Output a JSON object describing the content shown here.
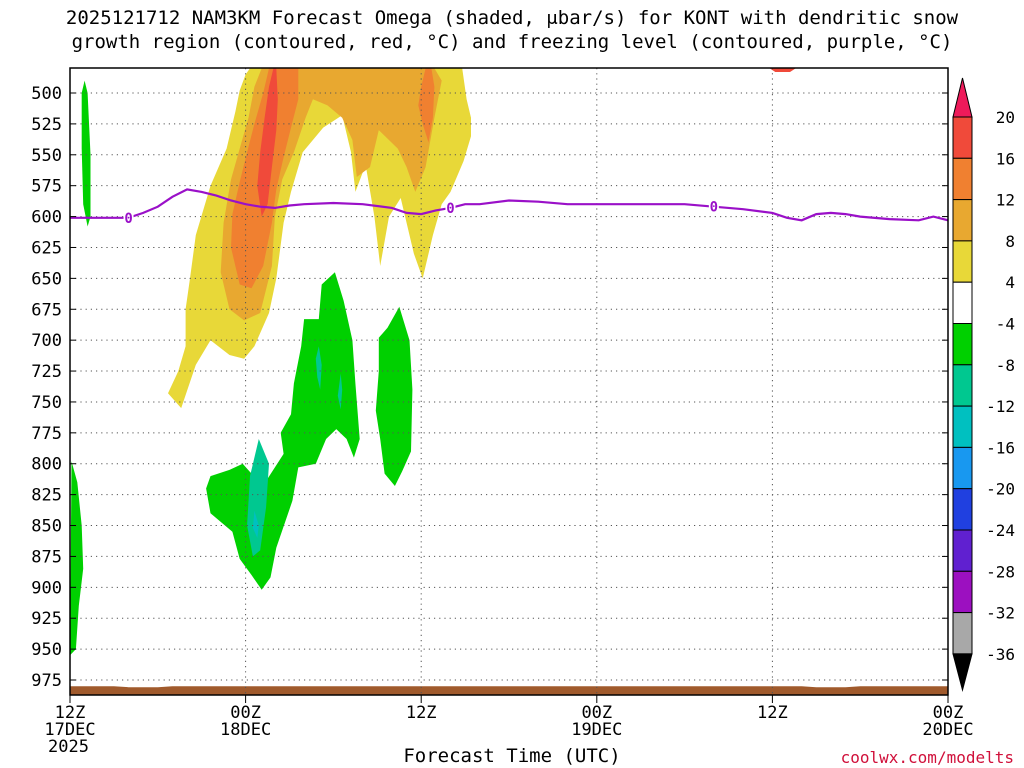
{
  "chart_data": {
    "type": "time-height",
    "title_line1": "2025121712 NAM3KM Forecast Omega (shaded, μbar/s) for KONT with dendritic snow",
    "title_line2": "growth region (contoured, red, °C) and freezing level (contoured, purple, °C)",
    "xlabel": "Forecast Time (UTC)",
    "credit": "coolwx.com/modelts",
    "x_range_hours": [
      0,
      60
    ],
    "y_range_hPa": [
      480,
      985
    ],
    "y_ticks": [
      500,
      525,
      550,
      575,
      600,
      625,
      650,
      675,
      700,
      725,
      750,
      775,
      800,
      825,
      850,
      875,
      900,
      925,
      950,
      975
    ],
    "x_ticks": [
      {
        "hour": 0,
        "lines": [
          "12Z",
          "17DEC",
          "2025"
        ]
      },
      {
        "hour": 12,
        "lines": [
          "00Z",
          "18DEC"
        ]
      },
      {
        "hour": 24,
        "lines": [
          "12Z"
        ]
      },
      {
        "hour": 36,
        "lines": [
          "00Z",
          "19DEC"
        ]
      },
      {
        "hour": 48,
        "lines": [
          "12Z"
        ]
      },
      {
        "hour": 60,
        "lines": [
          "00Z",
          "20DEC"
        ]
      }
    ],
    "colorbar": {
      "labels": [
        "20",
        "16",
        "12",
        "8",
        "4",
        "-4",
        "-8",
        "-12",
        "-16",
        "-20",
        "-24",
        "-28",
        "-32",
        "-36"
      ],
      "colors": [
        "#ee1a5a",
        "#f04a3a",
        "#f08030",
        "#e8a830",
        "#e8d838",
        "#ffffff",
        "#00d000",
        "#00c890",
        "#00c0c0",
        "#1898f0",
        "#2040e0",
        "#6020d0",
        "#9c10c0",
        "#a8a8a8",
        "#000000"
      ]
    },
    "freezing_level": {
      "label": "0",
      "color": "#9a10c8",
      "hours": [
        0,
        2,
        4,
        5,
        6,
        7,
        8,
        9,
        10,
        11,
        12,
        13,
        14,
        15,
        16,
        18,
        20,
        22,
        23,
        24,
        25,
        26,
        27,
        28,
        30,
        32,
        34,
        36,
        38,
        40,
        42,
        44,
        46,
        48,
        49,
        50,
        51,
        52,
        53,
        54,
        56,
        58,
        59,
        60
      ],
      "hPa": [
        601,
        601,
        601,
        597,
        592,
        584,
        578,
        580,
        583,
        587,
        590,
        592,
        593,
        591,
        590,
        589,
        590,
        593,
        597,
        598,
        595,
        593,
        590,
        590,
        587,
        588,
        590,
        590,
        590,
        590,
        590,
        592,
        594,
        597,
        601,
        603,
        598,
        597,
        598,
        600,
        602,
        603,
        600,
        603
      ]
    },
    "omega_regions": [
      {
        "level": "4",
        "color": "#e8d838",
        "points": [
          [
            12.3,
            480
          ],
          [
            12,
            485
          ],
          [
            11.6,
            498
          ],
          [
            11.3,
            515
          ],
          [
            10.7,
            545
          ],
          [
            9.6,
            575
          ],
          [
            8.6,
            615
          ],
          [
            8.2,
            650
          ],
          [
            7.9,
            675
          ],
          [
            7.9,
            705
          ],
          [
            7.4,
            725
          ],
          [
            6.7,
            743
          ],
          [
            7.6,
            755
          ],
          [
            8.6,
            720
          ],
          [
            9.6,
            700
          ],
          [
            10.9,
            712
          ],
          [
            11.9,
            715
          ],
          [
            12.6,
            705
          ],
          [
            13.6,
            678
          ],
          [
            14.1,
            650
          ],
          [
            14.6,
            605
          ],
          [
            15.1,
            580
          ],
          [
            15.9,
            548
          ],
          [
            17.3,
            528
          ],
          [
            18.6,
            518
          ],
          [
            19.2,
            548
          ],
          [
            19.5,
            580
          ],
          [
            20.2,
            558
          ],
          [
            20.8,
            600
          ],
          [
            21.2,
            640
          ],
          [
            21.8,
            600
          ],
          [
            22.6,
            585
          ],
          [
            23.5,
            630
          ],
          [
            24.1,
            650
          ],
          [
            24.8,
            615
          ],
          [
            25.4,
            590
          ],
          [
            26.0,
            580
          ],
          [
            26.9,
            555
          ],
          [
            27.4,
            535
          ],
          [
            27.4,
            520
          ],
          [
            27.1,
            505
          ],
          [
            26.8,
            480
          ]
        ]
      },
      {
        "level": "8",
        "color": "#e8a830",
        "points": [
          [
            13.1,
            480
          ],
          [
            12.6,
            495
          ],
          [
            12.2,
            520
          ],
          [
            11.6,
            545
          ],
          [
            11.0,
            570
          ],
          [
            10.5,
            605
          ],
          [
            10.3,
            645
          ],
          [
            10.9,
            675
          ],
          [
            11.9,
            684
          ],
          [
            13.0,
            678
          ],
          [
            13.8,
            640
          ],
          [
            14.0,
            600
          ],
          [
            14.5,
            570
          ],
          [
            15.3,
            548
          ],
          [
            16.1,
            520
          ],
          [
            16.6,
            505
          ],
          [
            17.6,
            510
          ],
          [
            18.6,
            520
          ],
          [
            19.3,
            538
          ],
          [
            19.6,
            568
          ],
          [
            20.5,
            560
          ],
          [
            21.1,
            530
          ],
          [
            22.4,
            545
          ],
          [
            23.0,
            560
          ],
          [
            23.6,
            580
          ],
          [
            24.3,
            560
          ],
          [
            24.9,
            520
          ],
          [
            25.4,
            490
          ],
          [
            24.9,
            480
          ]
        ]
      },
      {
        "level": "12",
        "color": "#f08030",
        "points": [
          [
            13.6,
            480
          ],
          [
            13.2,
            500
          ],
          [
            12.6,
            525
          ],
          [
            12.1,
            548
          ],
          [
            11.6,
            572
          ],
          [
            11.1,
            598
          ],
          [
            11.0,
            625
          ],
          [
            11.6,
            655
          ],
          [
            12.4,
            658
          ],
          [
            13.2,
            640
          ],
          [
            13.8,
            605
          ],
          [
            14.1,
            578
          ],
          [
            14.6,
            552
          ],
          [
            15.1,
            528
          ],
          [
            15.6,
            505
          ],
          [
            15.6,
            480
          ]
        ]
      },
      {
        "level": "12",
        "color": "#f08030",
        "points": [
          [
            24.3,
            480
          ],
          [
            24.0,
            495
          ],
          [
            23.8,
            510
          ],
          [
            24.1,
            525
          ],
          [
            24.5,
            540
          ],
          [
            24.8,
            520
          ],
          [
            24.9,
            495
          ],
          [
            24.7,
            480
          ]
        ]
      },
      {
        "level": "16",
        "color": "#f04a3a",
        "points": [
          [
            13.9,
            480
          ],
          [
            13.6,
            495
          ],
          [
            13.3,
            520
          ],
          [
            13.0,
            548
          ],
          [
            12.8,
            575
          ],
          [
            13.1,
            600
          ],
          [
            13.5,
            590
          ],
          [
            13.8,
            560
          ],
          [
            14.1,
            530
          ],
          [
            14.2,
            505
          ],
          [
            14.1,
            480
          ]
        ]
      },
      {
        "level": "16",
        "color": "#f04a3a",
        "points": [
          [
            47.8,
            480
          ],
          [
            48.2,
            483
          ],
          [
            49.2,
            483
          ],
          [
            49.6,
            480
          ]
        ]
      },
      {
        "level": "-4",
        "color": "#00d000",
        "points": [
          [
            0.1,
            798
          ],
          [
            0.5,
            815
          ],
          [
            0.8,
            850
          ],
          [
            0.9,
            885
          ],
          [
            0.6,
            915
          ],
          [
            0.4,
            950
          ],
          [
            0.0,
            955
          ]
        ]
      },
      {
        "level": "-4",
        "color": "#00d000",
        "points": [
          [
            1.0,
            490
          ],
          [
            1.2,
            500
          ],
          [
            1.4,
            550
          ],
          [
            1.4,
            600
          ],
          [
            1.2,
            608
          ],
          [
            0.9,
            590
          ],
          [
            0.8,
            545
          ],
          [
            0.8,
            500
          ]
        ]
      },
      {
        "level": "-4",
        "color": "#00d000",
        "points": [
          [
            12.8,
            825
          ],
          [
            14.6,
            792
          ],
          [
            14.4,
            775
          ],
          [
            15.1,
            760
          ],
          [
            15.3,
            735
          ],
          [
            15.8,
            705
          ],
          [
            16.0,
            683
          ],
          [
            17.0,
            683
          ],
          [
            17.2,
            655
          ],
          [
            18.1,
            645
          ],
          [
            18.7,
            668
          ],
          [
            19.3,
            700
          ],
          [
            19.5,
            735
          ],
          [
            19.8,
            780
          ],
          [
            19.4,
            795
          ],
          [
            18.9,
            780
          ],
          [
            18.2,
            772
          ],
          [
            17.5,
            780
          ],
          [
            16.8,
            800
          ],
          [
            15.6,
            803
          ],
          [
            15.2,
            830
          ],
          [
            14.1,
            868
          ],
          [
            13.7,
            892
          ],
          [
            13.1,
            902
          ],
          [
            12.4,
            890
          ],
          [
            11.6,
            877
          ],
          [
            11.1,
            855
          ],
          [
            9.6,
            840
          ],
          [
            9.3,
            820
          ],
          [
            9.6,
            810
          ],
          [
            10.9,
            805
          ],
          [
            11.8,
            800
          ],
          [
            12.4,
            808
          ]
        ]
      },
      {
        "level": "-4",
        "color": "#00d000",
        "points": [
          [
            22.5,
            673
          ],
          [
            23.2,
            700
          ],
          [
            23.4,
            740
          ],
          [
            23.3,
            790
          ],
          [
            22.7,
            806
          ],
          [
            22.2,
            818
          ],
          [
            21.5,
            808
          ],
          [
            21.2,
            780
          ],
          [
            20.9,
            757
          ],
          [
            21.1,
            725
          ],
          [
            21.1,
            698
          ],
          [
            21.7,
            690
          ]
        ]
      },
      {
        "level": "-8",
        "color": "#00c890",
        "points": [
          [
            12.9,
            780
          ],
          [
            13.6,
            800
          ],
          [
            13.4,
            835
          ],
          [
            13.0,
            870
          ],
          [
            12.5,
            875
          ],
          [
            12.1,
            850
          ],
          [
            12.3,
            810
          ]
        ]
      },
      {
        "level": "-8",
        "color": "#00c890",
        "points": [
          [
            17.0,
            705
          ],
          [
            17.2,
            720
          ],
          [
            17.1,
            740
          ],
          [
            16.9,
            730
          ],
          [
            16.8,
            715
          ]
        ]
      },
      {
        "level": "-8",
        "color": "#00c890",
        "points": [
          [
            18.5,
            727
          ],
          [
            18.6,
            740
          ],
          [
            18.5,
            756
          ],
          [
            18.3,
            745
          ]
        ]
      },
      {
        "level": "-12",
        "color": "#00c0c0",
        "points": [
          [
            12.6,
            838
          ],
          [
            12.9,
            850
          ],
          [
            12.8,
            860
          ],
          [
            12.5,
            852
          ]
        ]
      }
    ],
    "ground": {
      "color": "#a05a2c",
      "hPa_top": 980
    }
  }
}
